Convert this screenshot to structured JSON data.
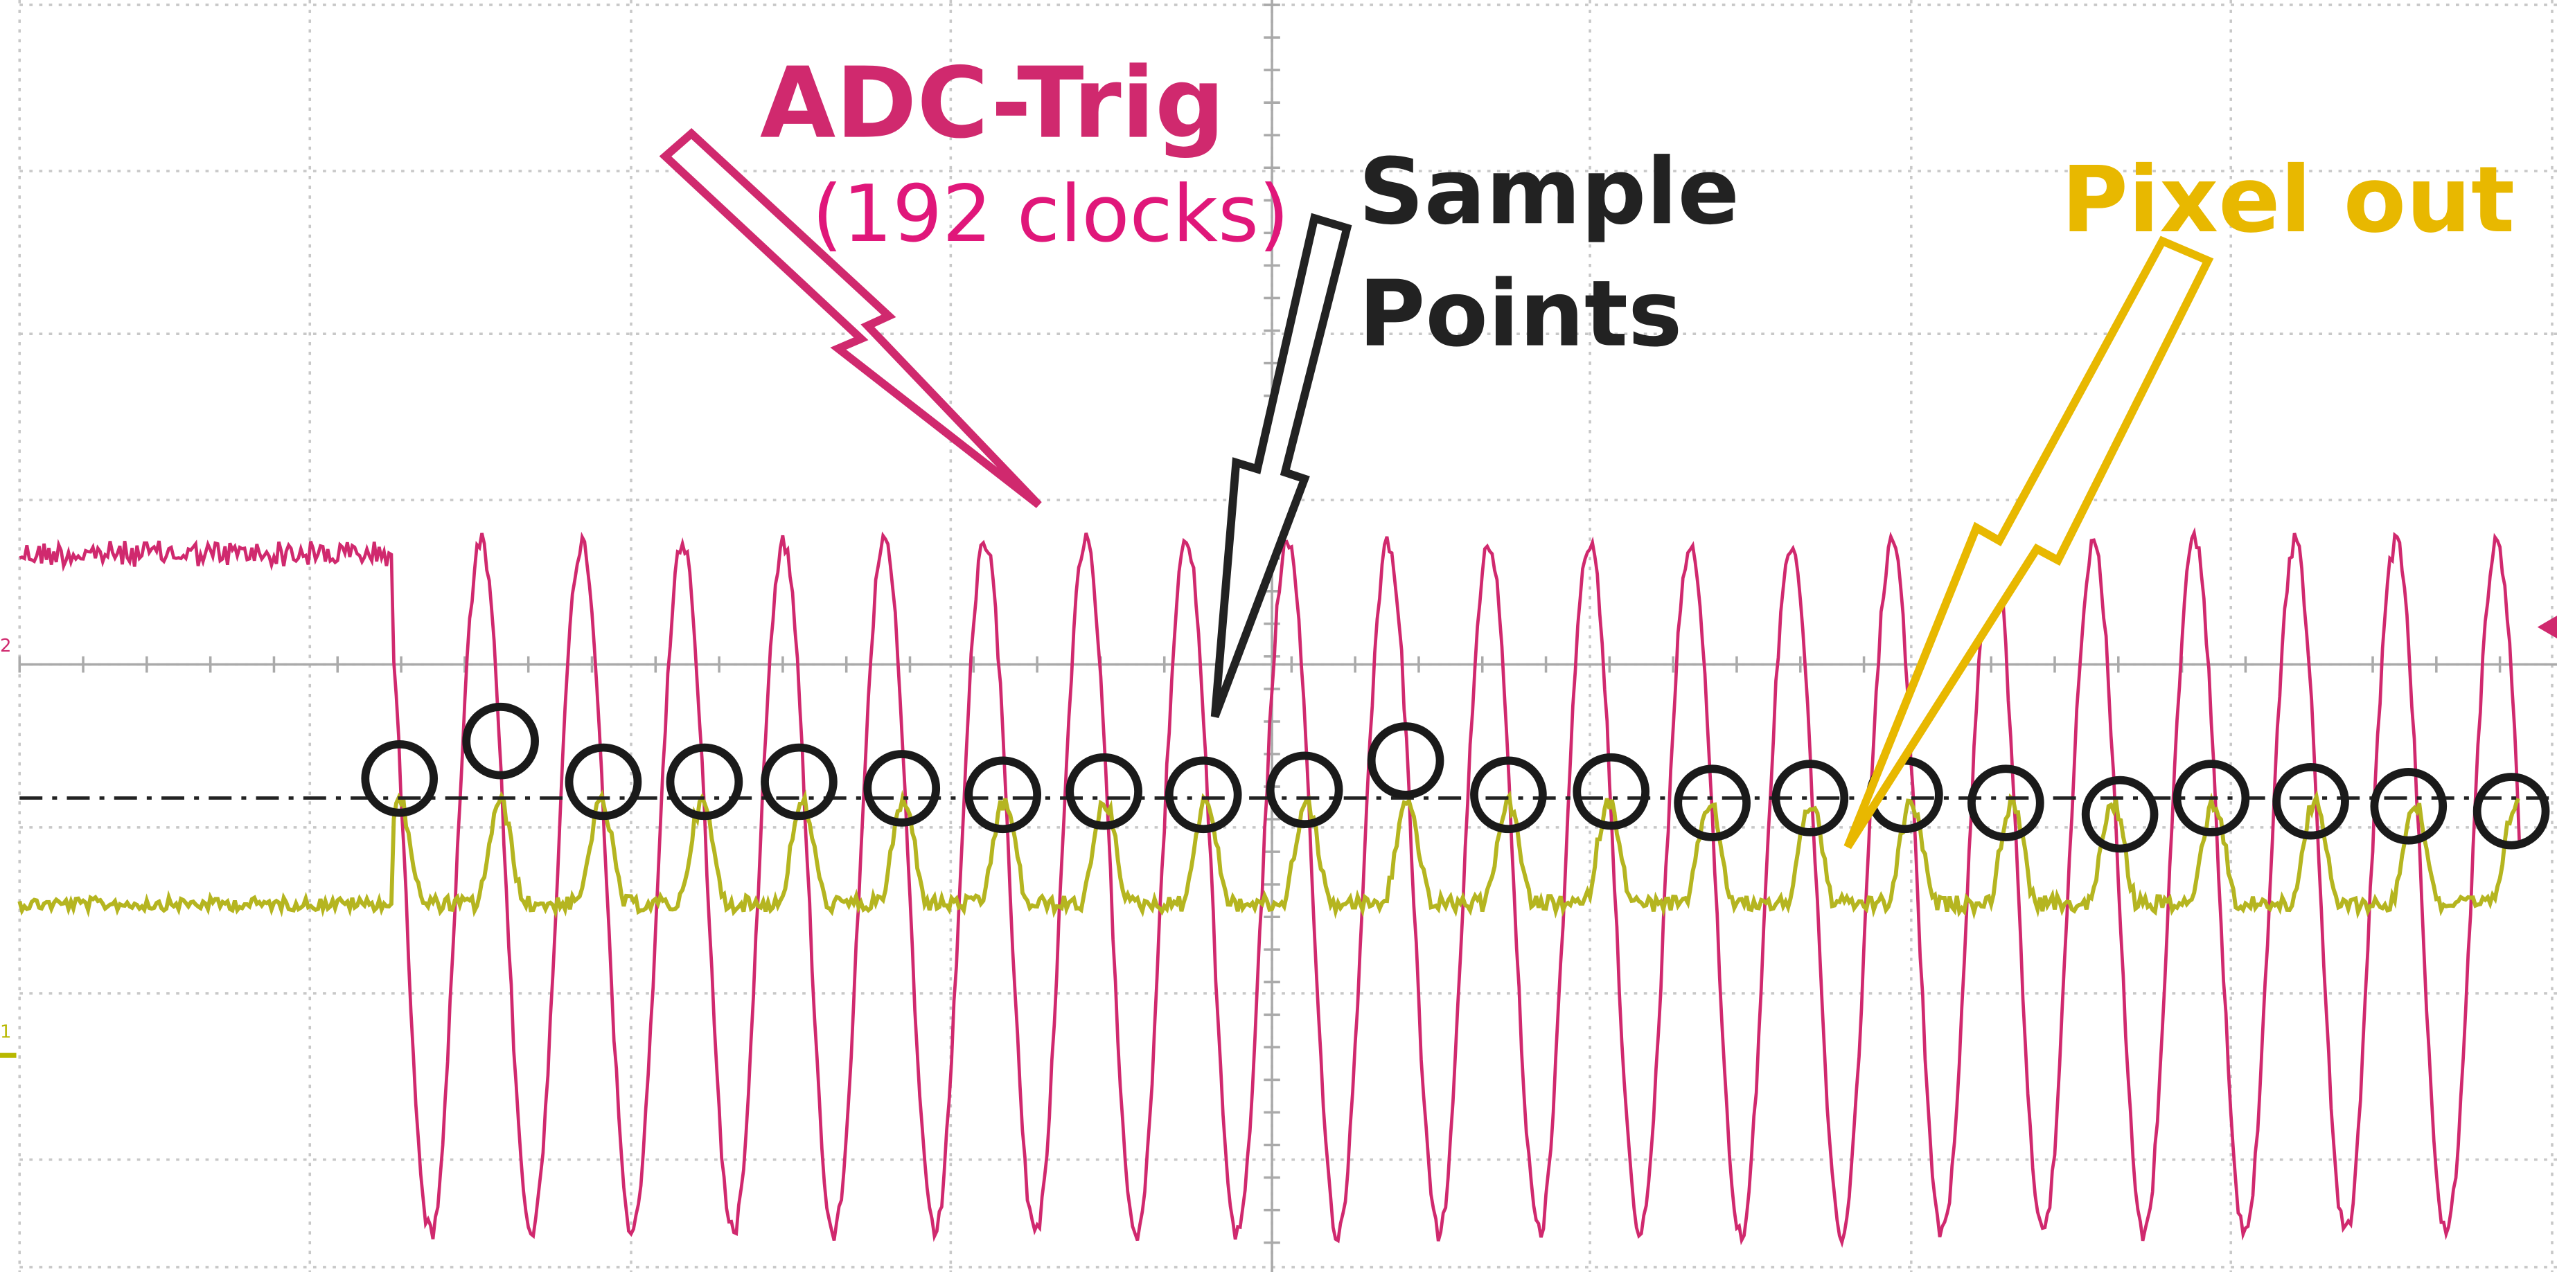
{
  "annotations": {
    "adc_trig": "ADC-Trig",
    "clocks": "(192 clocks)",
    "sample": "Sample",
    "points": "Points",
    "pixel_out": "Pixel out"
  },
  "channels": {
    "ch2": "2",
    "ch1": "1"
  }
}
